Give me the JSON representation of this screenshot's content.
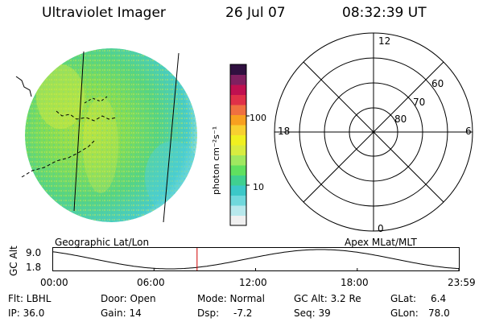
{
  "header": {
    "instrument": "Ultraviolet Imager",
    "date": "26 Jul 07",
    "time": "08:32:39 UT"
  },
  "colorbar": {
    "unit_label": "photon cm⁻²s⁻¹",
    "tick_100": "100",
    "tick_10": "10",
    "colors": [
      "#f0f0f0",
      "#b8e8ec",
      "#70d8dc",
      "#3cc8c8",
      "#40d090",
      "#60e060",
      "#a0e860",
      "#d8ec40",
      "#f0f020",
      "#f8d030",
      "#f8a020",
      "#f07040",
      "#e03048",
      "#c01050",
      "#802060",
      "#301040"
    ]
  },
  "polar_plot": {
    "mlt_top": "12",
    "mlt_left": "18",
    "mlt_right": "6",
    "mlt_bottom": "0",
    "lat_60": "60",
    "lat_70": "70",
    "lat_80": "80"
  },
  "altitude_plot": {
    "y_title": "GC Alt",
    "y_top": "9.0",
    "y_bottom": "1.8",
    "left_caption": "Geographic Lat/Lon",
    "right_caption": "Apex MLat/MLT",
    "x_ticks": [
      "00:00",
      "06:00",
      "12:00",
      "18:00",
      "23:59"
    ],
    "marker_color": "#d00000"
  },
  "status": {
    "filter": "Flt: LBHL",
    "ip": "IP: 36.0",
    "door": "Door: Open",
    "gain": "Gain: 14",
    "mode": "Mode: Normal",
    "dsp_label": "Dsp:",
    "dsp_value": "-7.2",
    "gc_alt": "GC Alt: 3.2 Re",
    "seq": "Seq: 39",
    "glat_label": "GLat:",
    "glat_value": "6.4",
    "glon_label": "GLon:",
    "glon_value": "78.0"
  }
}
